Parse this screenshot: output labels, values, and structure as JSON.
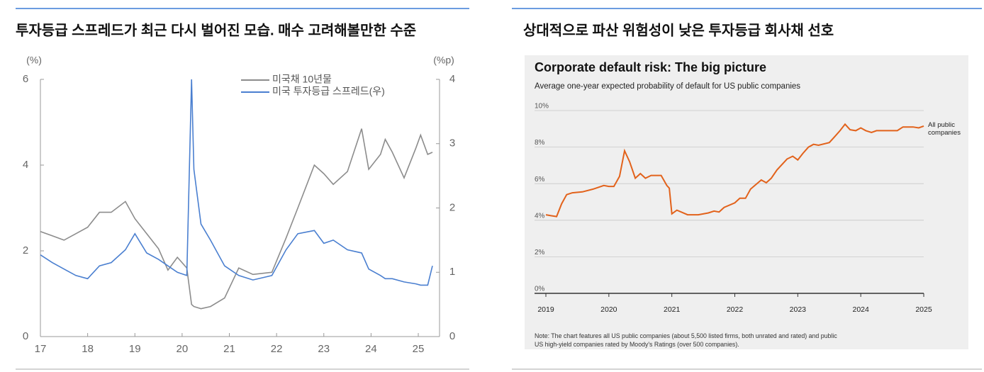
{
  "chart_data": [
    {
      "type": "line",
      "heading": "투자등급 스프레드가 최근 다시 벌어진 모습. 매수 고려해볼만한 수준",
      "ylabel": "(%)",
      "y2label": "(%p)",
      "x": [
        17,
        17.25,
        17.5,
        17.75,
        18,
        18.25,
        18.5,
        18.8,
        19,
        19.25,
        19.5,
        19.7,
        19.9,
        20.1,
        20.2,
        20.25,
        20.4,
        20.6,
        20.9,
        21.2,
        21.5,
        21.9,
        22.2,
        22.45,
        22.8,
        23,
        23.2,
        23.5,
        23.8,
        23.95,
        24.2,
        24.3,
        24.45,
        24.7,
        24.95,
        25.05,
        25.2,
        25.3
      ],
      "xlim": [
        17,
        25.45
      ],
      "xticks": [
        17,
        18,
        19,
        20,
        21,
        22,
        23,
        24,
        25
      ],
      "ylim": [
        0,
        6
      ],
      "yticks": [
        0,
        2,
        4,
        6
      ],
      "y2lim": [
        0,
        4
      ],
      "y2ticks": [
        0,
        1,
        2,
        3,
        4
      ],
      "series": [
        {
          "name": "미국채 10년물",
          "color": "#8c8c8c",
          "values": [
            2.45,
            2.35,
            2.25,
            2.4,
            2.55,
            2.9,
            2.9,
            3.15,
            2.75,
            2.4,
            2.05,
            1.55,
            1.85,
            1.6,
            0.75,
            0.7,
            0.65,
            0.7,
            0.9,
            1.6,
            1.45,
            1.5,
            2.3,
            3.0,
            4.0,
            3.8,
            3.55,
            3.85,
            4.85,
            3.9,
            4.25,
            4.6,
            4.3,
            3.7,
            4.4,
            4.7,
            4.25,
            4.3
          ]
        },
        {
          "name": "미국 투자등급 스프레드(우)",
          "color": "#4a7fd0",
          "axis": "y2",
          "values": [
            1.27,
            1.15,
            1.05,
            0.95,
            0.9,
            1.1,
            1.15,
            1.35,
            1.6,
            1.3,
            1.2,
            1.1,
            1.0,
            0.95,
            4.0,
            2.6,
            1.75,
            1.5,
            1.1,
            0.95,
            0.88,
            0.95,
            1.35,
            1.6,
            1.65,
            1.45,
            1.5,
            1.35,
            1.3,
            1.05,
            0.95,
            0.9,
            0.9,
            0.85,
            0.82,
            0.8,
            0.8,
            1.1
          ]
        }
      ]
    },
    {
      "type": "line",
      "heading": "상대적으로 파산 위험성이 낮은 투자등급 회사채 선호",
      "title": "Corporate default risk: The big picture",
      "subtitle": "Average one-year expected probability of default for US public companies",
      "note": "Note: The chart features all US public companies (about 5,500 listed firms, both unrated and rated) and public US high-yield companies rated by Moody's Ratings (over 500 companies).",
      "x": [
        2019.0,
        2019.08,
        2019.17,
        2019.25,
        2019.33,
        2019.42,
        2019.58,
        2019.75,
        2019.92,
        2020.0,
        2020.08,
        2020.17,
        2020.25,
        2020.33,
        2020.42,
        2020.5,
        2020.58,
        2020.67,
        2020.83,
        2020.92,
        2020.96,
        2021.0,
        2021.08,
        2021.25,
        2021.42,
        2021.58,
        2021.67,
        2021.75,
        2021.83,
        2022.0,
        2022.08,
        2022.17,
        2022.25,
        2022.42,
        2022.5,
        2022.58,
        2022.67,
        2022.83,
        2022.92,
        2023.0,
        2023.08,
        2023.17,
        2023.25,
        2023.33,
        2023.5,
        2023.58,
        2023.67,
        2023.75,
        2023.83,
        2023.92,
        2024.0,
        2024.08,
        2024.17,
        2024.25,
        2024.42,
        2024.58,
        2024.67,
        2024.83,
        2024.92,
        2025.0
      ],
      "xlim": [
        2019,
        2025
      ],
      "xticks": [
        2019,
        2020,
        2021,
        2022,
        2023,
        2024,
        2025
      ],
      "ylim": [
        0,
        10
      ],
      "yticks": [
        {
          "value": 0,
          "label": "0%"
        },
        {
          "value": 2,
          "label": "2%"
        },
        {
          "value": 4,
          "label": "4%"
        },
        {
          "value": 6,
          "label": "6%"
        },
        {
          "value": 8,
          "label": "8%"
        },
        {
          "value": 10,
          "label": "10%"
        }
      ],
      "grid": true,
      "series": [
        {
          "name": "All public companies",
          "color": "#e2621b",
          "values": [
            4.3,
            4.25,
            4.2,
            4.9,
            5.4,
            5.5,
            5.55,
            5.7,
            5.9,
            5.85,
            5.85,
            6.4,
            7.8,
            7.2,
            6.3,
            6.55,
            6.3,
            6.45,
            6.45,
            5.9,
            5.75,
            4.35,
            4.55,
            4.3,
            4.3,
            4.4,
            4.5,
            4.45,
            4.7,
            4.95,
            5.2,
            5.2,
            5.7,
            6.2,
            6.05,
            6.3,
            6.75,
            7.35,
            7.5,
            7.3,
            7.65,
            8.0,
            8.15,
            8.1,
            8.25,
            8.55,
            8.9,
            9.25,
            8.95,
            8.9,
            9.05,
            8.9,
            8.8,
            8.9,
            8.9,
            8.9,
            9.1,
            9.1,
            9.05,
            9.15
          ]
        }
      ]
    }
  ]
}
